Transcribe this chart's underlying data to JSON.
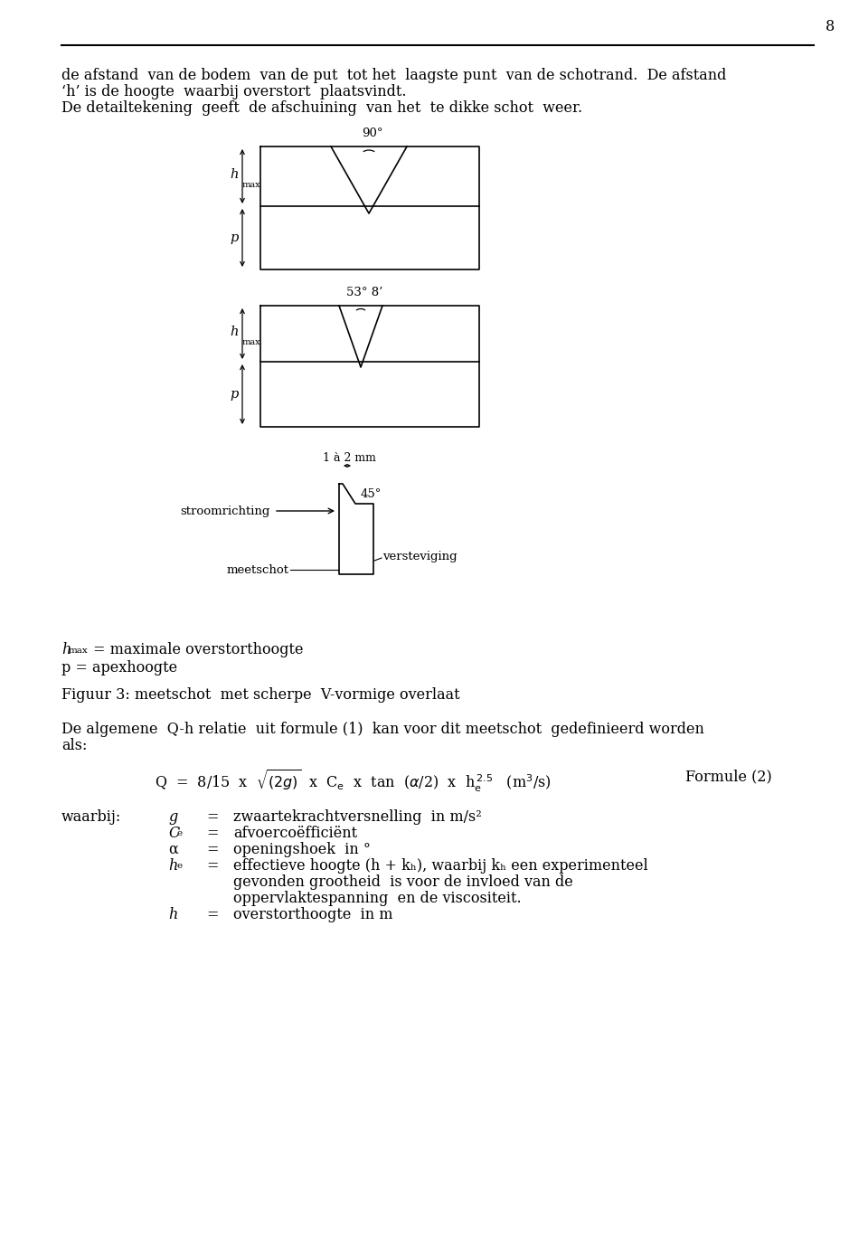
{
  "bg_color": "#ffffff",
  "text_color": "#000000",
  "page_number": "8",
  "intro_line1": "de afstand  van de bodem  van de put  tot het  laagste punt  van de schotrand.  De afstand",
  "intro_line2": "‘h’ is de hoogte  waarbij overstort  plaatsvindt.",
  "intro_line3": "De detailtekening  geeft  de afschuining  van het  te dikke schot  weer.",
  "figuur_caption": "Figuur 3: meetschot  met scherpe  V-vormige overlaat",
  "body_line1": "De algemene  Q-h relatie  uit formule (1)  kan voor dit meetschot  gedefinieerd worden",
  "body_line2": "als:",
  "formula_label": "Formule (2)",
  "waarbij": "waarbij:",
  "var_g_def": "zwaartekrachtversnelling  in m/s²",
  "var_Ce_def": "afvoercoëfficiënt",
  "var_alpha_def": "openingshoek  in °",
  "var_he_def1": "effectieve hoogte (h + kₕ), waarbij kₕ een experimenteel",
  "var_he_def2": "gevonden grootheid  is voor de invloed van de",
  "var_he_def3": "oppervlaktespanning  en de viscositeit.",
  "var_h_def": "overstorthoogte  in m",
  "deg90": "90°",
  "deg53": "53° 8’",
  "stroomrichting": "stroomrichting",
  "meetschot": "meetschot",
  "versteviging": "versteviging",
  "mm_label": "1 à 2 mm",
  "deg45": "45°",
  "hmax_label": "= maximale overstorthoogte",
  "p_label": "p = apexhoogte"
}
